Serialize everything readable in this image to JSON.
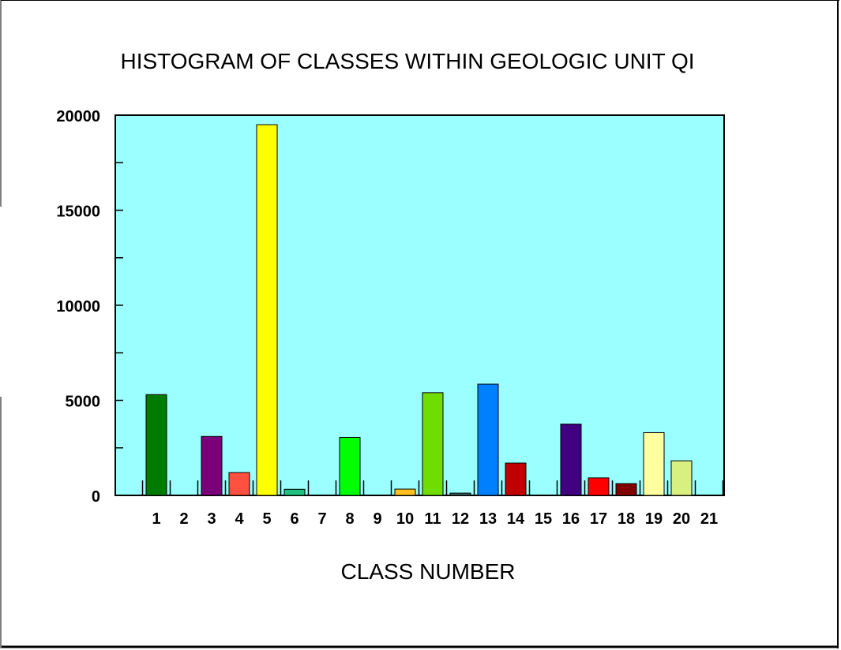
{
  "chart_data": {
    "type": "bar",
    "title": "HISTOGRAM OF CLASSES WITHIN GEOLOGIC UNIT QI",
    "xlabel": "CLASS NUMBER",
    "ylabel": "",
    "categories": [
      "1",
      "2",
      "3",
      "4",
      "5",
      "6",
      "7",
      "8",
      "9",
      "10",
      "11",
      "12",
      "13",
      "14",
      "15",
      "16",
      "17",
      "18",
      "19",
      "20",
      "21"
    ],
    "values": [
      5300,
      0,
      3100,
      1200,
      19500,
      320,
      0,
      3050,
      0,
      330,
      5400,
      120,
      5850,
      1700,
      0,
      3750,
      920,
      620,
      3300,
      1820,
      0
    ],
    "bar_colors": [
      "#007a00",
      "#000000",
      "#7a007a",
      "#ff5040",
      "#ffff00",
      "#20c080",
      "#000000",
      "#00ff00",
      "#000000",
      "#ffc020",
      "#70dd00",
      "#406060",
      "#0080ff",
      "#c00000",
      "#000000",
      "#400080",
      "#ff0000",
      "#800000",
      "#ffffa0",
      "#d8f080",
      "#000000"
    ],
    "ylim": [
      0,
      20000
    ],
    "y_ticks": [
      "0",
      "5000",
      "10000",
      "15000",
      "20000"
    ],
    "grid": false,
    "plot_background": "#9bffff"
  }
}
